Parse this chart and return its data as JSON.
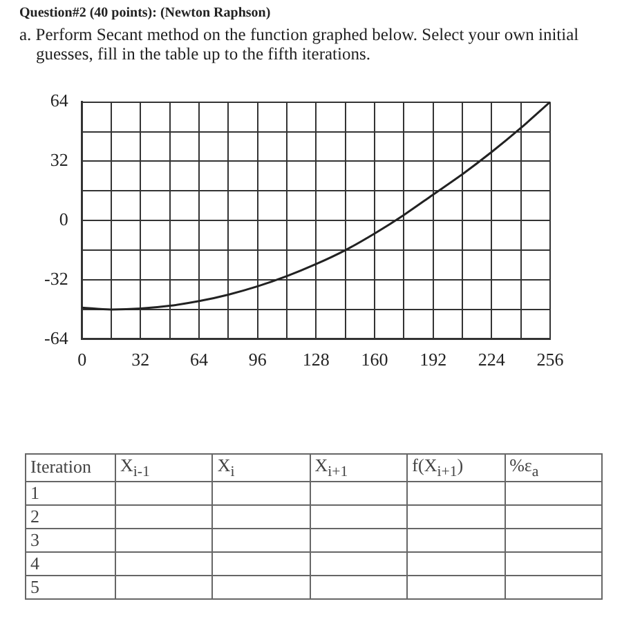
{
  "chart_data": {
    "type": "line",
    "title": "Question#2 (40 points): (Newton Raphson)",
    "subtitle": "a. Perform Secant method on the function graphed below. Select your own initial guesses, fill in the table up to the fifth iterations.",
    "x": [
      0,
      16,
      32,
      48,
      64,
      80,
      96,
      112,
      128,
      144,
      160,
      176,
      192,
      208,
      224,
      240,
      256
    ],
    "series": [
      {
        "color": "#222222",
        "values": [
          -47,
          -48,
          -47.5,
          -46,
          -43.5,
          -40,
          -35.5,
          -30,
          -23.5,
          -16,
          -7,
          3,
          14,
          25,
          37,
          50,
          64
        ]
      }
    ],
    "xlim": [
      0,
      256
    ],
    "ylim": [
      -64,
      64
    ],
    "xticks": [
      0,
      {
        "value": 16,
        "label": null
      },
      32,
      {
        "value": 48,
        "label": null
      },
      64,
      {
        "value": 80,
        "label": null
      },
      96,
      {
        "value": 112,
        "label": null
      },
      128,
      {
        "value": 144,
        "label": null
      },
      160,
      {
        "value": 176,
        "label": null
      },
      192,
      {
        "value": 208,
        "label": null
      },
      224,
      {
        "value": 240,
        "label": null
      },
      256
    ],
    "yticks": [
      -64,
      {
        "value": -48,
        "label": null
      },
      -32,
      {
        "value": -16,
        "label": null
      },
      0,
      {
        "value": 16,
        "label": null
      },
      32,
      {
        "value": 48,
        "label": null
      },
      64
    ],
    "grid": true,
    "legend": false,
    "marker": "none",
    "line_style": "solid",
    "annotations": [
      "Iteration",
      "X$_{i-1}$",
      "X$_{i}$",
      "X$_{i+1}$",
      "f(X$_{i+1}$)",
      "%ε$_{a}$",
      "1",
      "2",
      "3",
      "4",
      "5"
    ]
  }
}
